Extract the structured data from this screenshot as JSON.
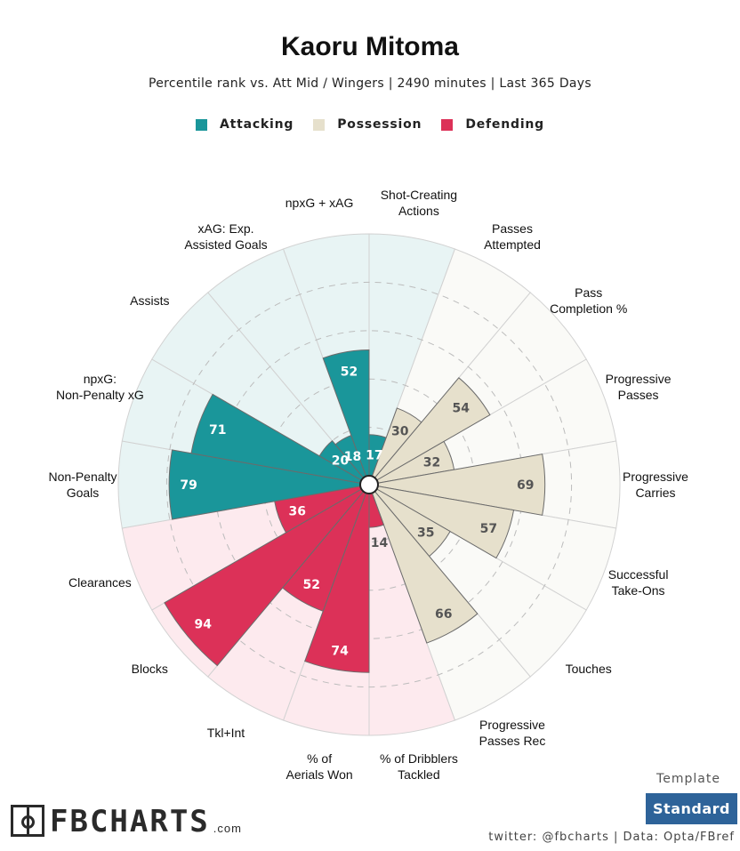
{
  "header": {
    "title": "Kaoru Mitoma",
    "subtitle": "Percentile rank vs. Att Mid / Wingers | 2490 minutes | Last 365 Days"
  },
  "legend": [
    {
      "label": "Attacking",
      "color": "#1a969a"
    },
    {
      "label": "Possession",
      "color": "#e6e0cc"
    },
    {
      "label": "Defending",
      "color": "#dc3158"
    }
  ],
  "chart_data": {
    "type": "polar-bar",
    "title": "Kaoru Mitoma",
    "rmax": 100,
    "grid_rings": [
      20,
      40,
      60,
      80
    ],
    "categories": [
      {
        "label": "Shot-Creating Actions",
        "value": 17,
        "group": "Attacking"
      },
      {
        "label": "Passes Attempted",
        "value": 30,
        "group": "Possession"
      },
      {
        "label": "Pass Completion %",
        "value": 54,
        "group": "Possession"
      },
      {
        "label": "Progressive Passes",
        "value": 32,
        "group": "Possession"
      },
      {
        "label": "Progressive Carries",
        "value": 69,
        "group": "Possession"
      },
      {
        "label": "Successful Take-Ons",
        "value": 57,
        "group": "Possession"
      },
      {
        "label": "Touches",
        "value": 35,
        "group": "Possession"
      },
      {
        "label": "Progressive Passes Rec",
        "value": 66,
        "group": "Possession"
      },
      {
        "label": "% of Dribblers Tackled",
        "value": 14,
        "group": "Defending"
      },
      {
        "label": "% of Aerials Won",
        "value": 74,
        "group": "Defending"
      },
      {
        "label": "Tkl+Int",
        "value": 52,
        "group": "Defending"
      },
      {
        "label": "Blocks",
        "value": 94,
        "group": "Defending"
      },
      {
        "label": "Clearances",
        "value": 36,
        "group": "Defending"
      },
      {
        "label": "Non-Penalty Goals",
        "value": 79,
        "group": "Attacking"
      },
      {
        "label": "npxG: Non-Penalty xG",
        "value": 71,
        "group": "Attacking"
      },
      {
        "label": "Assists",
        "value": 20,
        "group": "Attacking"
      },
      {
        "label": "xAG: Exp. Assisted Goals",
        "value": 18,
        "group": "Attacking"
      },
      {
        "label": "npxG + xAG",
        "value": 52,
        "group": "Attacking"
      }
    ]
  },
  "footer": {
    "logo_text": "FBCHARTS",
    "logo_suffix": ".com",
    "template_label": "Template",
    "template_value": "Standard",
    "credits": "twitter: @fbcharts | Data: Opta/FBref"
  }
}
